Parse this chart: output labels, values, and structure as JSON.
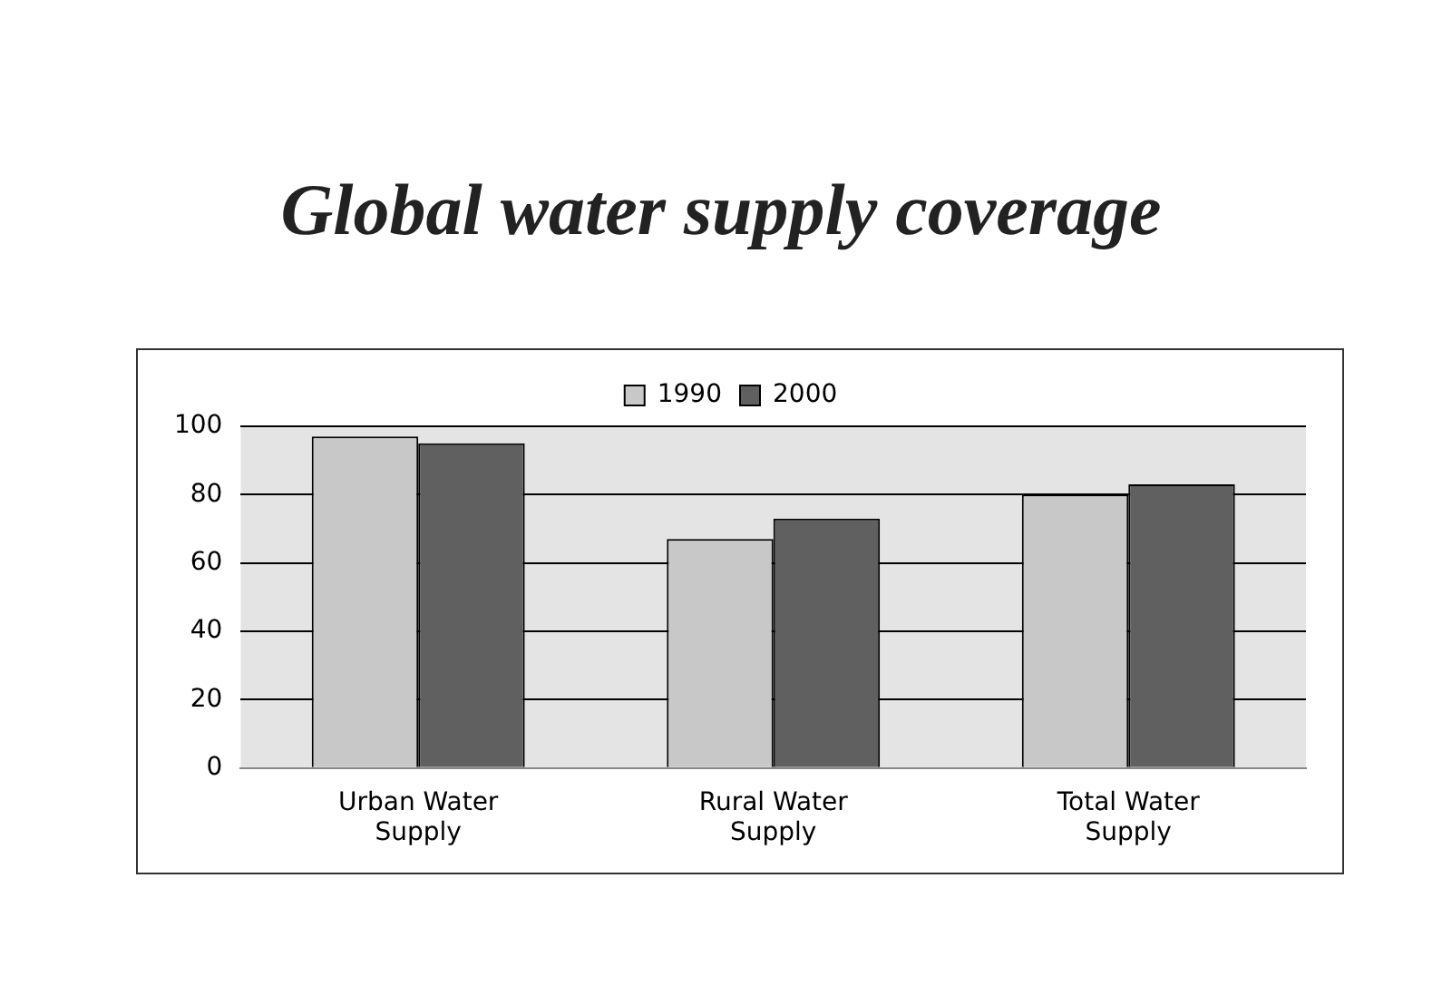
{
  "chart_data": {
    "type": "bar",
    "title": "Global water supply coverage",
    "categories": [
      "Urban Water\nSupply",
      "Rural Water\nSupply",
      "Total Water\nSupply"
    ],
    "series": [
      {
        "name": "1990",
        "color": "#c8c8c8",
        "values": [
          97,
          67,
          80
        ]
      },
      {
        "name": "2000",
        "color": "#606060",
        "values": [
          95,
          73,
          83
        ]
      }
    ],
    "ylim": [
      0,
      100
    ],
    "yticks": [
      0,
      20,
      40,
      60,
      80,
      100
    ],
    "grid": "y",
    "legend": "top"
  }
}
